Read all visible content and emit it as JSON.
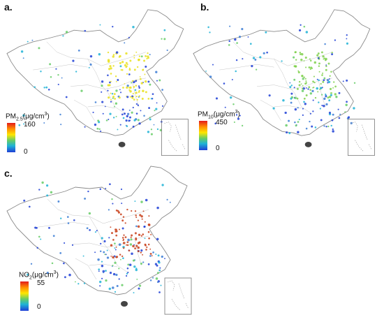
{
  "panels": [
    {
      "id": "a",
      "label": "a.",
      "pollutant": "PM",
      "subscript": "2.5",
      "unit": "(μg/cm",
      "unit_sup": "3",
      "unit_close": ")",
      "max_label": "160",
      "min_label": "0",
      "hotspot_color": "#e9e01e"
    },
    {
      "id": "b",
      "label": "b.",
      "pollutant": "PM",
      "subscript": "10",
      "unit": "(μg/cm",
      "unit_sup": "3",
      "unit_close": ")",
      "max_label": "450",
      "min_label": "0",
      "hotspot_color": "#7fd04b"
    },
    {
      "id": "c",
      "label": "c.",
      "pollutant": "NO",
      "subscript": "2",
      "unit": "(μg/cm",
      "unit_sup": "3",
      "unit_close": ")",
      "max_label": "55",
      "min_label": "0",
      "hotspot_color": "#c8401a"
    }
  ],
  "colors": {
    "outline": "#8a8a8a",
    "scale_high": "#e31a1c",
    "scale_mid": "#ffe600",
    "scale_low": "#1f3fd6"
  }
}
